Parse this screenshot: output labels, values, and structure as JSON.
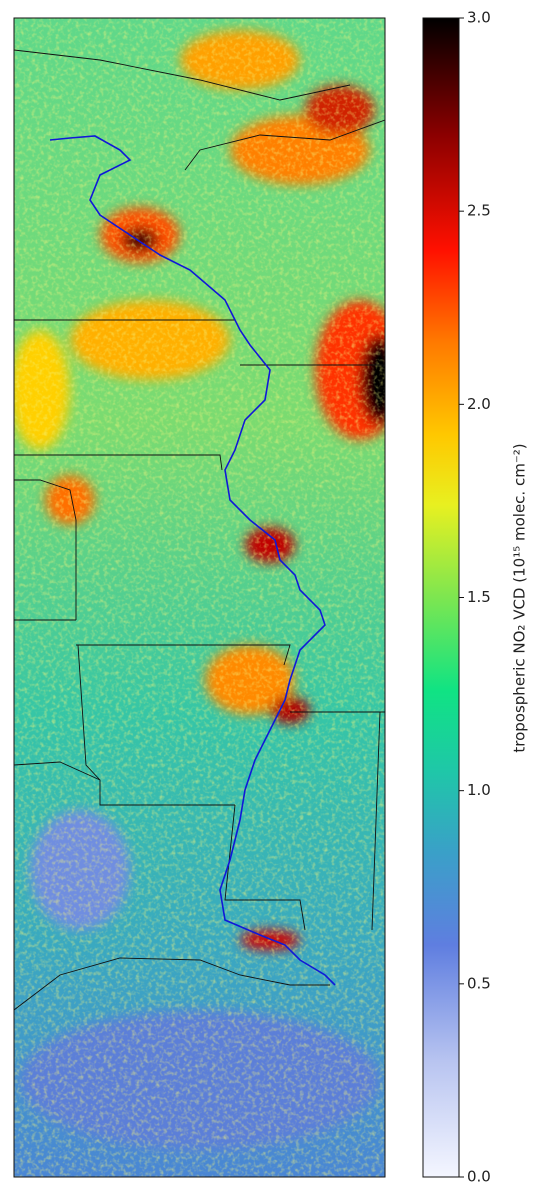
{
  "colorbar": {
    "label": "tropospheric NO₂ VCD (10¹⁵ molec. cm⁻²)",
    "lim": [
      0,
      3
    ],
    "ticks": [
      {
        "value": 0,
        "label": "0.0"
      },
      0.5,
      {
        "value": 1,
        "label": "1.0"
      },
      1.5,
      {
        "value": 2,
        "label": "2.0"
      },
      2.5,
      {
        "value": 3,
        "label": "3.0"
      }
    ]
  }
}
